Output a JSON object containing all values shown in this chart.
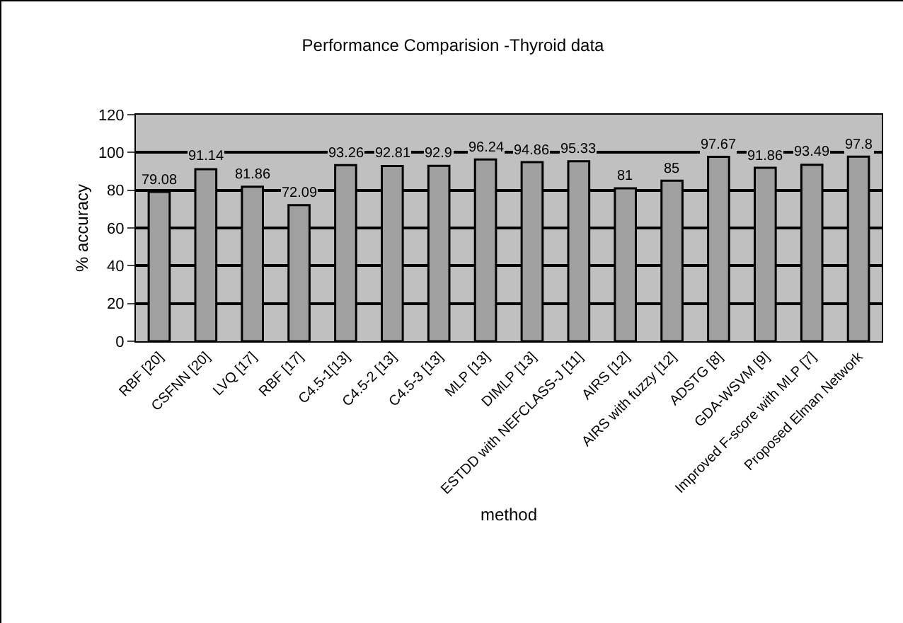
{
  "chart_data": {
    "type": "bar",
    "title": "Performance Comparision -Thyroid data",
    "xlabel": "method",
    "ylabel": "% accuracy",
    "categories": [
      "RBF [20]",
      "CSFNN [20]",
      "LVQ [17]",
      "RBF [17]",
      "C4.5-1[13]",
      "C4.5-2 [13]",
      "C4.5-3 [13]",
      "MLP [13]",
      "DIMLP [13]",
      "ESTDD with NEFCLASS-J [11]",
      "AIRS [12]",
      "AIRS with fuzzy [12]",
      "ADSTG [8]",
      "GDA-WSVM [9]",
      "Improved F-score with MLP [7]",
      "Proposed Elman Network"
    ],
    "values": [
      79.08,
      91.14,
      81.86,
      72.09,
      93.26,
      92.81,
      92.9,
      96.24,
      94.86,
      95.33,
      81,
      85,
      97.67,
      91.86,
      93.49,
      97.8
    ],
    "color": "#a0a0a0",
    "ylim": [
      0,
      120
    ],
    "yticks": [
      0,
      20,
      40,
      60,
      80,
      100,
      120
    ],
    "grid": "y",
    "data_labels": true
  }
}
